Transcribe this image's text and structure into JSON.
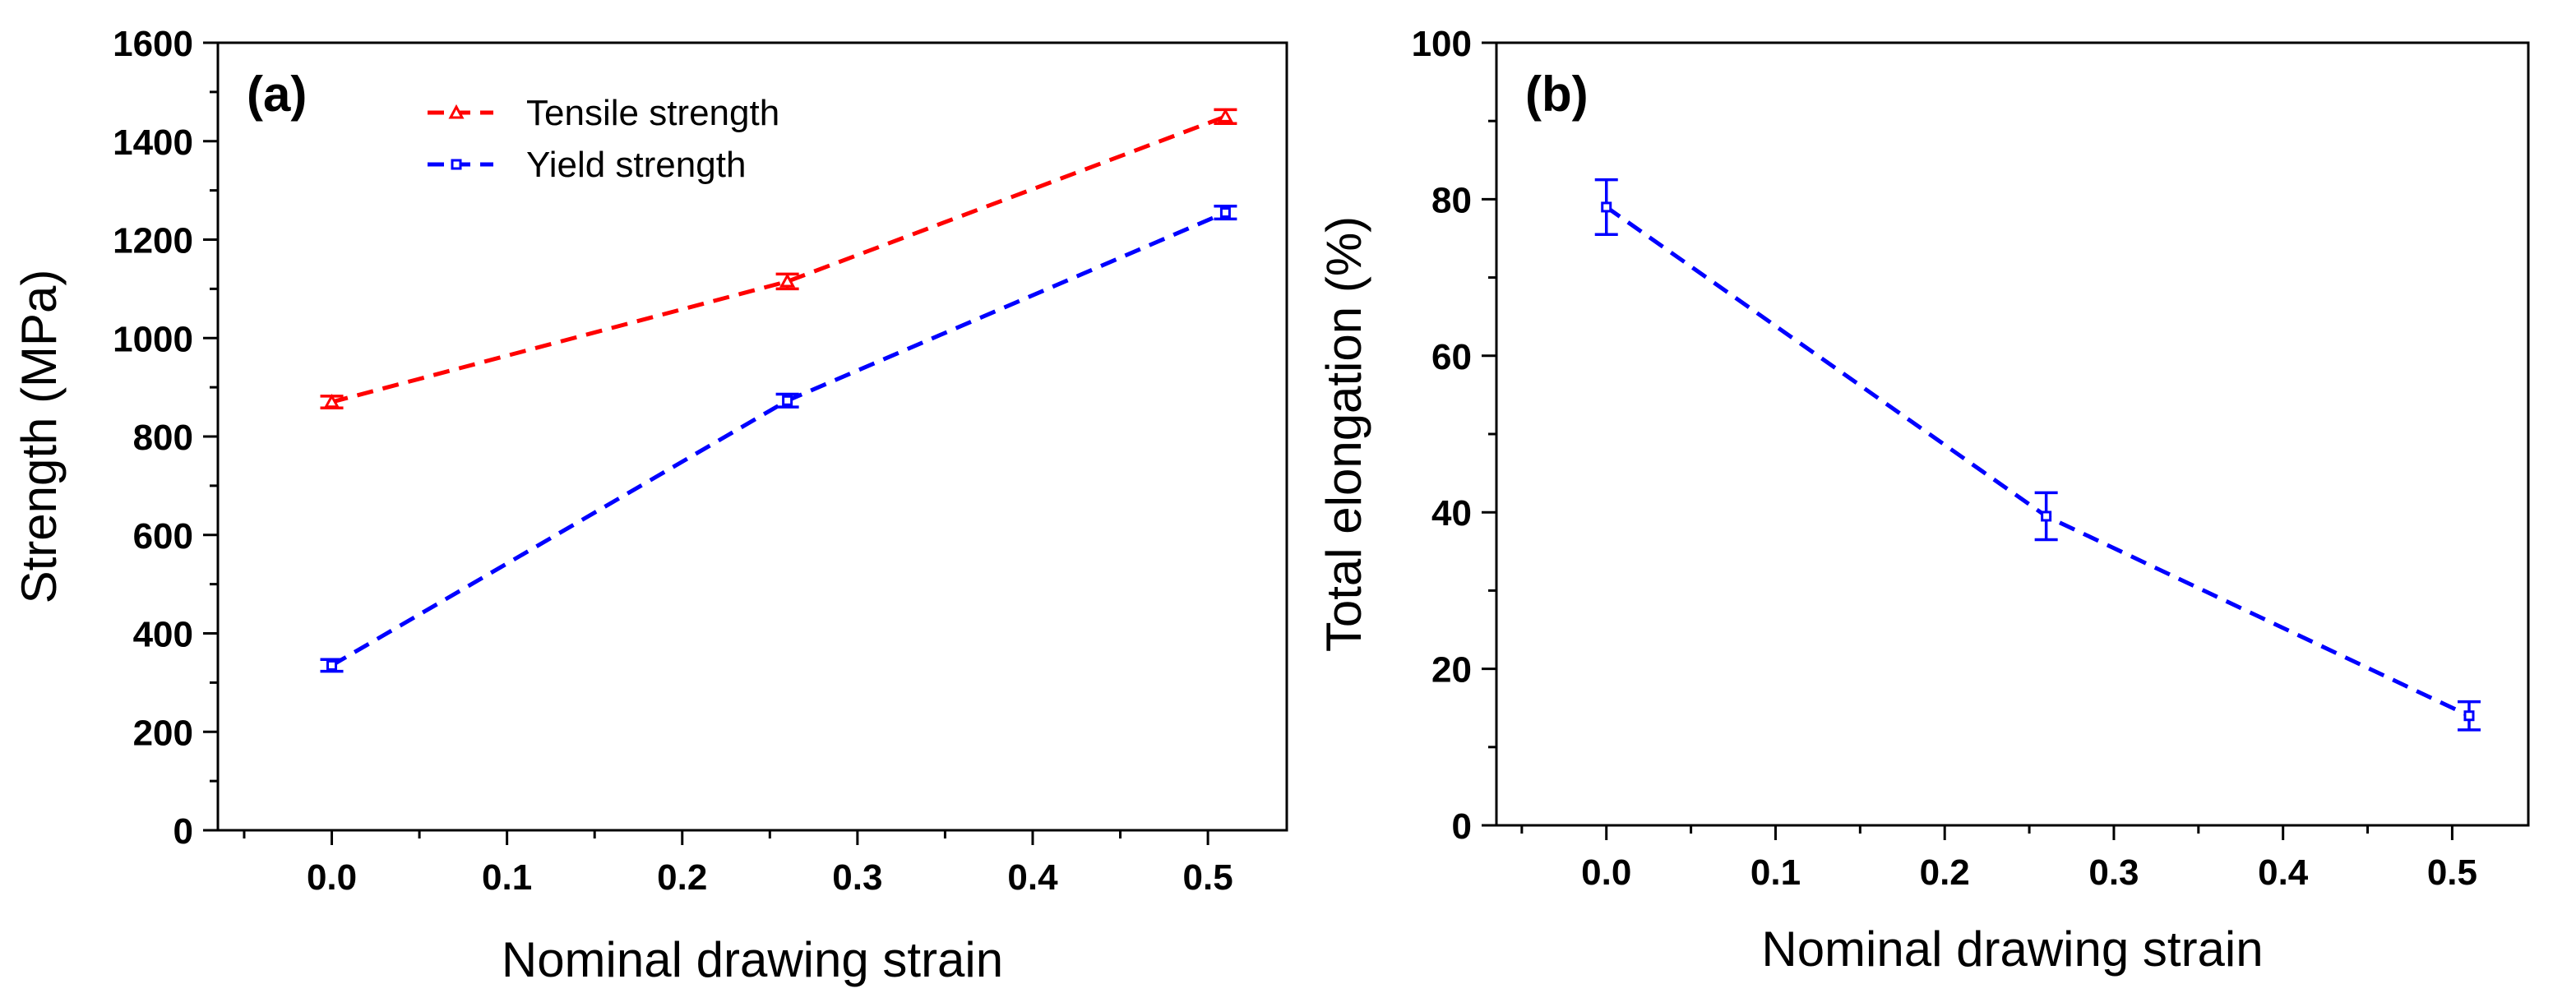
{
  "chart_data": [
    {
      "type": "line",
      "panel_label": "(a)",
      "xlabel": "Nominal drawing strain",
      "ylabel": "Strength (MPa)",
      "xlim": [
        -0.065,
        0.545
      ],
      "ylim": [
        0,
        1600
      ],
      "x_ticks": [
        0.0,
        0.1,
        0.2,
        0.3,
        0.4,
        0.5
      ],
      "x_tick_labels": [
        "0.0",
        "0.1",
        "0.2",
        "0.3",
        "0.4",
        "0.5"
      ],
      "y_ticks": [
        0,
        200,
        400,
        600,
        800,
        1000,
        1200,
        1400,
        1600
      ],
      "y_tick_labels": [
        "0",
        "200",
        "400",
        "600",
        "800",
        "1000",
        "1200",
        "1400",
        "1600"
      ],
      "grid": false,
      "legend_position": "top-center",
      "series": [
        {
          "name": "Tensile strength",
          "color": "#ff0000",
          "marker": "triangle",
          "x": [
            0.0,
            0.26,
            0.51
          ],
          "y": [
            870,
            1115,
            1450
          ],
          "err": [
            12,
            15,
            14
          ]
        },
        {
          "name": "Yield strength",
          "color": "#0000ff",
          "marker": "square",
          "x": [
            0.0,
            0.26,
            0.51
          ],
          "y": [
            335,
            873,
            1255
          ],
          "err": [
            12,
            13,
            13
          ]
        }
      ]
    },
    {
      "type": "line",
      "panel_label": "(b)",
      "xlabel": "Nominal drawing strain",
      "ylabel": "Total elongation (%)",
      "xlim": [
        -0.065,
        0.545
      ],
      "ylim": [
        0,
        100
      ],
      "x_ticks": [
        0.0,
        0.1,
        0.2,
        0.3,
        0.4,
        0.5
      ],
      "x_tick_labels": [
        "0.0",
        "0.1",
        "0.2",
        "0.3",
        "0.4",
        "0.5"
      ],
      "y_ticks": [
        0,
        20,
        40,
        60,
        80,
        100
      ],
      "y_tick_labels": [
        "0",
        "20",
        "40",
        "60",
        "80",
        "100"
      ],
      "grid": false,
      "series": [
        {
          "color": "#0000ff",
          "marker": "square",
          "x": [
            0.0,
            0.26,
            0.51
          ],
          "y": [
            79,
            39.5,
            14
          ],
          "err": [
            3.5,
            3,
            1.8
          ]
        }
      ]
    }
  ]
}
